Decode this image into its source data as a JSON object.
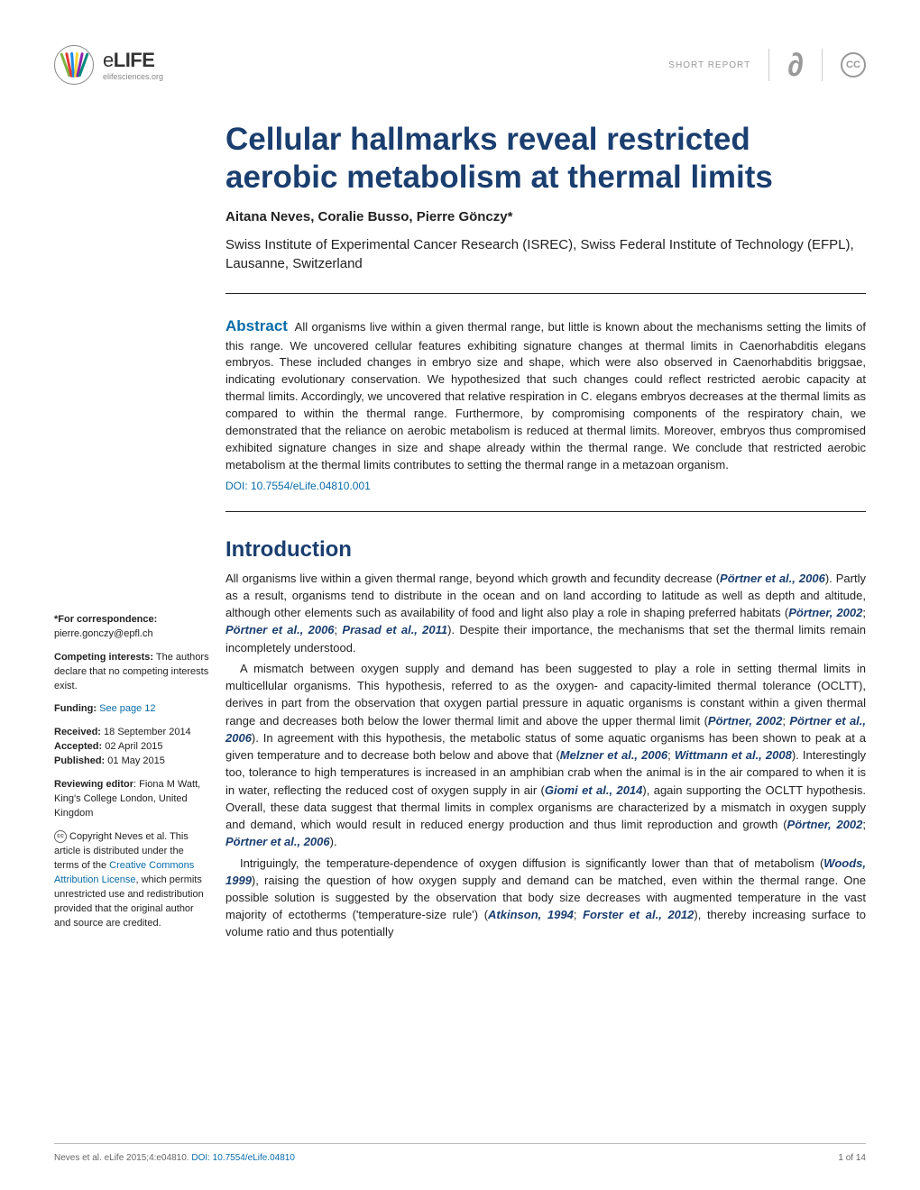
{
  "header": {
    "brand_e": "e",
    "brand_life": "LIFE",
    "url": "elifesciences.org",
    "report_type": "SHORT REPORT",
    "cc_label": "CC",
    "logo_colors": [
      "#7cb342",
      "#e53935",
      "#1e88e5",
      "#fdd835",
      "#8e24aa",
      "#00897b",
      "#fb8c00",
      "#3949ab"
    ]
  },
  "title": "Cellular hallmarks reveal restricted aerobic metabolism at thermal limits",
  "authors": "Aitana Neves, Coralie Busso, Pierre Gönczy*",
  "affiliation": "Swiss Institute of Experimental Cancer Research (ISREC), Swiss Federal Institute of Technology (EFPL), Lausanne, Switzerland",
  "abstract": {
    "label": "Abstract",
    "text": "All organisms live within a given thermal range, but little is known about the mechanisms setting the limits of this range. We uncovered cellular features exhibiting signature changes at thermal limits in Caenorhabditis elegans embryos. These included changes in embryo size and shape, which were also observed in Caenorhabditis briggsae, indicating evolutionary conservation. We hypothesized that such changes could reflect restricted aerobic capacity at thermal limits. Accordingly, we uncovered that relative respiration in C. elegans embryos decreases at the thermal limits as compared to within the thermal range. Furthermore, by compromising components of the respiratory chain, we demonstrated that the reliance on aerobic metabolism is reduced at thermal limits. Moreover, embryos thus compromised exhibited signature changes in size and shape already within the thermal range. We conclude that restricted aerobic metabolism at the thermal limits contributes to setting the thermal range in a metazoan organism.",
    "doi": "DOI: 10.7554/eLife.04810.001"
  },
  "intro_heading": "Introduction",
  "sidebar": {
    "correspondence_label": "*For correspondence:",
    "correspondence_value": "pierre.gonczy@epfl.ch",
    "competing_label": "Competing interests:",
    "competing_value": "The authors declare that no competing interests exist.",
    "funding_label": "Funding:",
    "funding_link": "See page 12",
    "received_label": "Received:",
    "received_value": "18 September 2014",
    "accepted_label": "Accepted:",
    "accepted_value": "02 April 2015",
    "published_label": "Published:",
    "published_value": "01 May 2015",
    "editor_label": "Reviewing editor",
    "editor_value": ": Fiona M Watt, King's College London, United Kingdom",
    "cc_label": "cc",
    "copyright_pre": "Copyright Neves et al. This article is distributed under the terms of the ",
    "copyright_link": "Creative Commons Attribution License",
    "copyright_post": ", which permits unrestricted use and redistribution provided that the original author and source are credited."
  },
  "body": {
    "p1_a": "All organisms live within a given thermal range, beyond which growth and fecundity decrease (",
    "p1_r1": "Pörtner et al., 2006",
    "p1_b": "). Partly as a result, organisms tend to distribute in the ocean and on land according to latitude as well as depth and altitude, although other elements such as availability of food and light also play a role in shaping preferred habitats (",
    "p1_r2": "Pörtner, 2002",
    "p1_c": "; ",
    "p1_r3": "Pörtner et al., 2006",
    "p1_d": "; ",
    "p1_r4": "Prasad et al., 2011",
    "p1_e": "). Despite their importance, the mechanisms that set the thermal limits remain incompletely understood.",
    "p2_a": "A mismatch between oxygen supply and demand has been suggested to play a role in setting thermal limits in multicellular organisms. This hypothesis, referred to as the oxygen- and capacity-limited thermal tolerance (OCLTT), derives in part from the observation that oxygen partial pressure in aquatic organisms is constant within a given thermal range and decreases both below the lower thermal limit and above the upper thermal limit (",
    "p2_r1": "Pörtner, 2002",
    "p2_b": "; ",
    "p2_r2": "Pörtner et al., 2006",
    "p2_c": "). In agreement with this hypothesis, the metabolic status of some aquatic organisms has been shown to peak at a given temperature and to decrease both below and above that (",
    "p2_r3": "Melzner et al., 2006",
    "p2_d": "; ",
    "p2_r4": "Wittmann et al., 2008",
    "p2_e": "). Interestingly too, tolerance to high temperatures is increased in an amphibian crab when the animal is in the air compared to when it is in water, reflecting the reduced cost of oxygen supply in air (",
    "p2_r5": "Giomi et al., 2014",
    "p2_f": "), again supporting the OCLTT hypothesis. Overall, these data suggest that thermal limits in complex organisms are characterized by a mismatch in oxygen supply and demand, which would result in reduced energy production and thus limit reproduction and growth (",
    "p2_r6": "Pörtner, 2002",
    "p2_g": "; ",
    "p2_r7": "Pörtner et al., 2006",
    "p2_h": ").",
    "p3_a": "Intriguingly, the temperature-dependence of oxygen diffusion is significantly lower than that of metabolism (",
    "p3_r1": "Woods, 1999",
    "p3_b": "), raising the question of how oxygen supply and demand can be matched, even within the thermal range. One possible solution is suggested by the observation that body size decreases with augmented temperature in the vast majority of ectotherms ('temperature-size rule') (",
    "p3_r2": "Atkinson, 1994",
    "p3_c": "; ",
    "p3_r3": "Forster et al., 2012",
    "p3_d": "), thereby increasing surface to volume ratio and thus potentially"
  },
  "footer": {
    "citation": "Neves et al. eLife 2015;4:e04810. ",
    "doi_label": "DOI: 10.7554/eLife.04810",
    "page": "1 of 14"
  },
  "colors": {
    "title": "#1a3e6f",
    "link": "#0a6ca8",
    "text": "#222222",
    "muted": "#999999"
  }
}
